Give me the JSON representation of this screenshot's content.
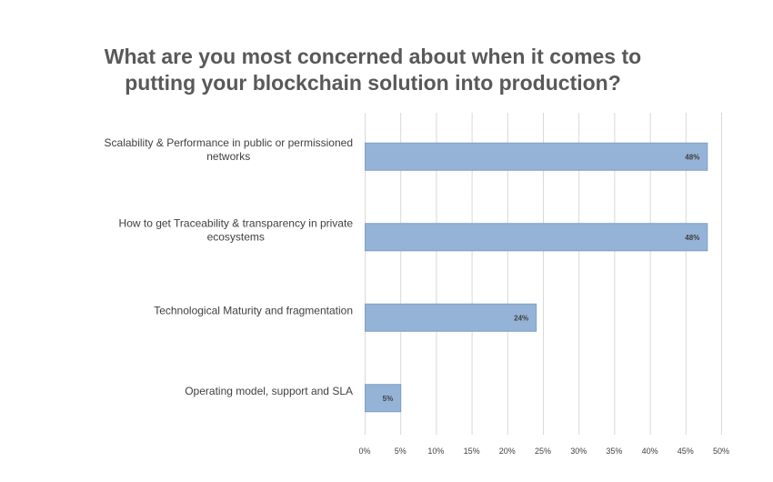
{
  "chart_data": {
    "type": "bar",
    "orientation": "horizontal",
    "title_lines": [
      "What are you most concerned about when it comes to",
      "putting your blockchain solution into production?"
    ],
    "categories": [
      [
        "Scalability & Performance in public or permissioned",
        "networks"
      ],
      [
        "How to get Traceability & transparency in private",
        "ecosystems"
      ],
      [
        "Technological Maturity and fragmentation"
      ],
      [
        "Operating model, support and SLA"
      ]
    ],
    "values": [
      48,
      48,
      24,
      5
    ],
    "data_labels": [
      "48%",
      "48%",
      "24%",
      "5%"
    ],
    "xlim": [
      0,
      50
    ],
    "x_ticks": [
      0,
      5,
      10,
      15,
      20,
      25,
      30,
      35,
      40,
      45,
      50
    ],
    "x_tick_labels": [
      "0%",
      "5%",
      "10%",
      "15%",
      "20%",
      "25%",
      "30%",
      "35%",
      "40%",
      "45%",
      "50%"
    ],
    "grid": true,
    "legend": "none",
    "bar_color": "#95b3d7",
    "bar_edge_color": "#7f9fc6",
    "grid_color": "#d9d9d9",
    "label_color": "#404040",
    "title_color": "#595959"
  }
}
